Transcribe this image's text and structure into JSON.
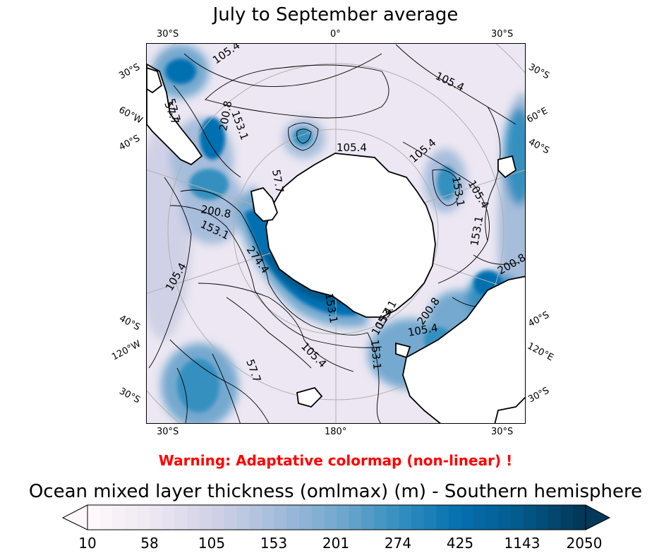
{
  "title": "July to September average",
  "warning": "Warning: Adaptative colormap (non-linear) !",
  "colorbar": {
    "title": "Ocean mixed layer thickness (omlmax) (m) - Southern hemisphere",
    "ticks": [
      "10",
      "58",
      "105",
      "153",
      "201",
      "274",
      "425",
      "1143",
      "2050"
    ],
    "colormap": "PuBu",
    "extend": "both"
  },
  "map": {
    "projection": "south-polar-stereographic",
    "gridlines": true,
    "lat_labels": {
      "edge": "30°S",
      "inner": "40°S"
    },
    "lon_labels": {
      "top": "0°",
      "bottom": "180°",
      "left_upper": "60°W",
      "right_upper": "60°E",
      "left_lower": "120°W",
      "right_lower": "120°E"
    },
    "contour_labels": [
      "105.4",
      "105.4",
      "57.7",
      "57.7",
      "153.1",
      "200.8",
      "105.4",
      "105.4",
      "153.1",
      "105.4",
      "153.1",
      "200.8",
      "153.1",
      "105.4",
      "200.8",
      "274.4",
      "57.7",
      "105.4",
      "153.1",
      "105.4",
      "153.1",
      "57.7",
      "105.4",
      "200.8",
      "153.1"
    ],
    "land_color": "#ffffff"
  }
}
